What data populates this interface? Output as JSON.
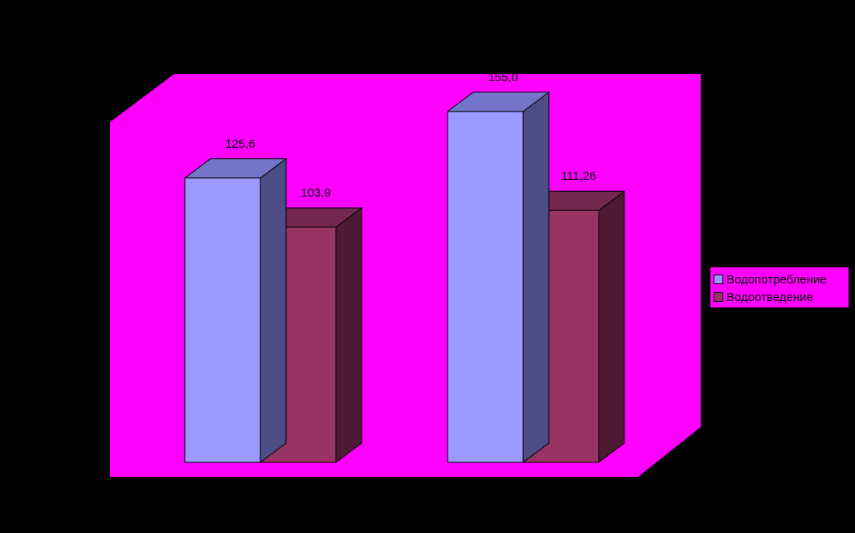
{
  "colors": {
    "background": "#000000",
    "plot_area": "#ff00ff"
  },
  "chart_data": {
    "type": "bar",
    "three_d": true,
    "categories": [
      "",
      ""
    ],
    "series": [
      {
        "name": "Водопотребление",
        "values": [
          125.6,
          155.0
        ],
        "value_labels": [
          "125,6",
          "155,0"
        ],
        "color_front": "#9999ff",
        "color_top": "#7275c8",
        "color_side": "#4b4d84"
      },
      {
        "name": "Водоотведение",
        "values": [
          103.9,
          111.26
        ],
        "value_labels": [
          "103,9",
          "111,26"
        ],
        "color_front": "#993366",
        "color_top": "#722650",
        "color_side": "#4d1a35"
      }
    ],
    "ylim": [
      0,
      170
    ],
    "grid": false,
    "legend_position": "right"
  }
}
